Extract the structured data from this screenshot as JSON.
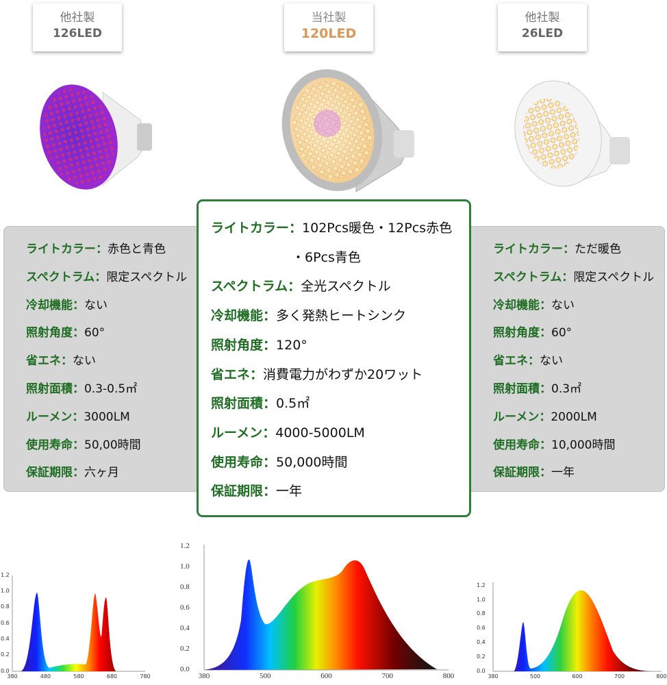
{
  "products": [
    {
      "maker": "他社製",
      "leds": "126LED",
      "specs": [
        {
          "label": "ライトカラー：",
          "value": "赤色と青色"
        },
        {
          "label": "スペクトラム：",
          "value": "限定スペクトル"
        },
        {
          "label": "冷却機能：",
          "value": "ない"
        },
        {
          "label": "照射角度：",
          "value": "60°"
        },
        {
          "label": "省エネ：",
          "value": "ない"
        },
        {
          "label": "照射面積：",
          "value": "0.3-0.5㎡"
        },
        {
          "label": "ルーメン：",
          "value": "3000LM"
        },
        {
          "label": "使用寿命：",
          "value": "50,00時間"
        },
        {
          "label": "保証期限：",
          "value": "六ヶ月"
        }
      ]
    },
    {
      "maker": "当社製",
      "leds": "120LED",
      "specs": [
        {
          "label": "ライトカラー：",
          "value": [
            "102Pcs暖色・12Pcs赤色",
            "・6Pcs青色"
          ]
        },
        {
          "label": "スペクトラム：",
          "value": "全光スペクトル"
        },
        {
          "label": "冷却機能：",
          "value": "多く発熱ヒートシンク"
        },
        {
          "label": "照射角度：",
          "value": "120°"
        },
        {
          "label": "省エネ：",
          "value": "消費電力がわずか20ワット"
        },
        {
          "label": "照射面積：",
          "value": "0.5㎡"
        },
        {
          "label": "ルーメン：",
          "value": "4000-5000LM"
        },
        {
          "label": "使用寿命：",
          "value": "50,000時間"
        },
        {
          "label": "保証期限：",
          "value": "一年"
        }
      ]
    },
    {
      "maker": "他社製",
      "leds": "26LED",
      "specs": [
        {
          "label": "ライトカラー：",
          "value": "ただ暖色"
        },
        {
          "label": "スペクトラム：",
          "value": "限定スペクトル"
        },
        {
          "label": "冷却機能：",
          "value": "ない"
        },
        {
          "label": "照射角度：",
          "value": "60°"
        },
        {
          "label": "省エネ：",
          "value": "ない"
        },
        {
          "label": "照射面積：",
          "value": "0.3㎡"
        },
        {
          "label": "ルーメン：",
          "value": "2000LM"
        },
        {
          "label": "使用寿命：",
          "value": "10,000時間"
        },
        {
          "label": "保証期限：",
          "value": "一年"
        }
      ]
    }
  ],
  "spectra": [
    {
      "yticks": [
        "0.0",
        "0.2",
        "0.4",
        "0.6",
        "0.8",
        "1.0",
        "1.2"
      ],
      "xticks": [
        "380",
        "480",
        "580",
        "680",
        "780"
      ]
    },
    {
      "yticks": [
        "0.0",
        "0.2",
        "0.4",
        "0.6",
        "0.8",
        "1.0",
        "1.2"
      ],
      "xticks": [
        "380",
        "500",
        "600",
        "700",
        "800"
      ]
    },
    {
      "yticks": [
        "0.0",
        "0.2",
        "0.4",
        "0.6",
        "0.8",
        "1.0",
        "1.2"
      ],
      "xticks": [
        "380",
        "500",
        "600",
        "700",
        "800"
      ]
    }
  ]
}
